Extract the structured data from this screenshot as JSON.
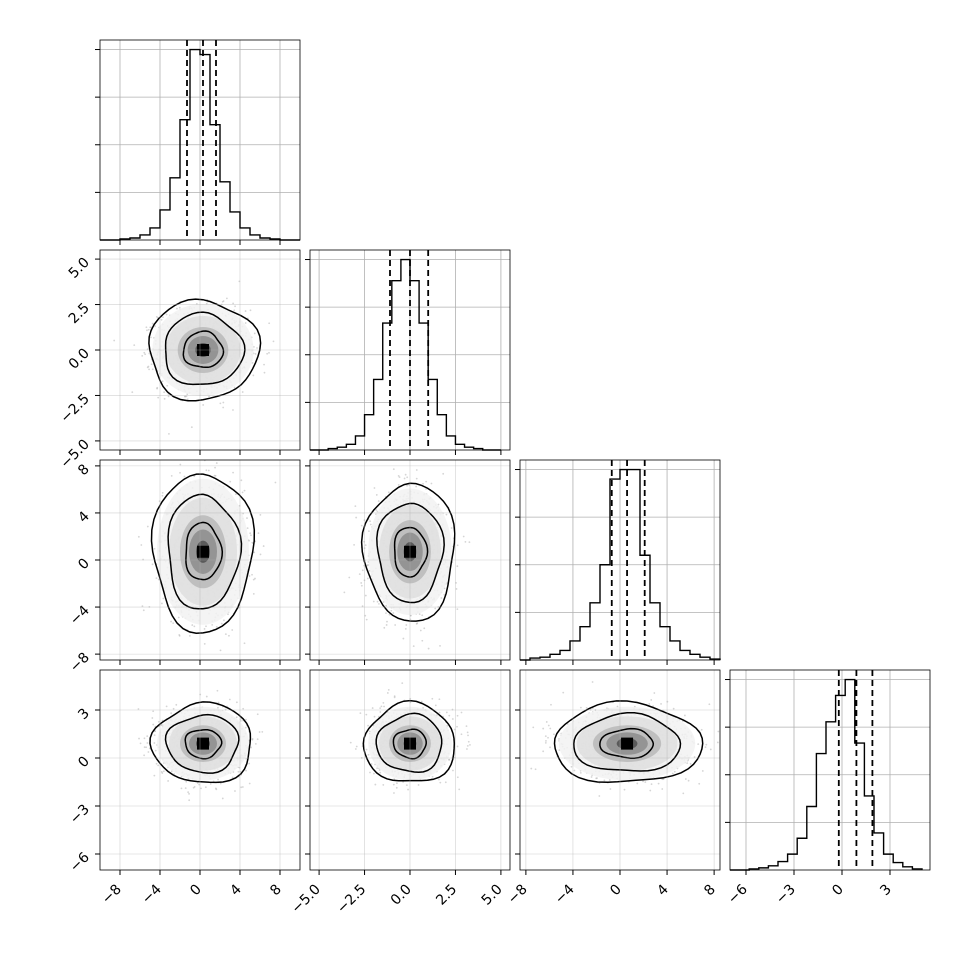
{
  "chart_data": {
    "type": "corner",
    "parameters": 4,
    "grid": true,
    "colors": {
      "line": "#000000",
      "scatter": "#b3b3b3",
      "grid": "#b0b0b0"
    },
    "axes": [
      {
        "range": [
          -10,
          10
        ],
        "ticks": [
          -8,
          -4,
          0,
          4,
          8
        ],
        "tick_labels": [
          "−8",
          "−4",
          "0",
          "4",
          "8"
        ],
        "quantiles": [
          -1.3,
          0.3,
          1.6
        ],
        "ellipse_scale": [
          2.0,
          2.0
        ]
      },
      {
        "range": [
          -5.5,
          5.5
        ],
        "ticks": [
          -5,
          -2.5,
          0,
          2.5,
          5
        ],
        "tick_labels": [
          "−5.0",
          "−2.5",
          "0.0",
          "2.5",
          "5.0"
        ],
        "quantiles": [
          -1.1,
          0.0,
          1.0
        ],
        "ellipse_scale": [
          1.0,
          1.0
        ]
      },
      {
        "range": [
          -8.5,
          8.5
        ],
        "ticks": [
          -8,
          -4,
          0,
          4,
          8
        ],
        "tick_labels": [
          "−8",
          "−4",
          "0",
          "4",
          "8"
        ],
        "quantiles": [
          -0.7,
          0.6,
          2.1
        ],
        "ellipse_scale": [
          1.8,
          1.8
        ]
      },
      {
        "range": [
          -7,
          5.5
        ],
        "ticks": [
          -6,
          -3,
          0,
          3
        ],
        "tick_labels": [
          "−6",
          "−3",
          "0",
          "3"
        ],
        "quantiles": [
          -0.2,
          0.9,
          1.9
        ],
        "ellipse_scale": [
          1.0,
          1.0
        ]
      }
    ],
    "marginals": [
      {
        "bin_edges": [
          -10,
          -9,
          -8,
          -7,
          -6,
          -5,
          -4,
          -3,
          -2,
          -1,
          0,
          1,
          2,
          3,
          4,
          5,
          6,
          7,
          8,
          9,
          10
        ],
        "counts": [
          0,
          0,
          1,
          2,
          5,
          12,
          30,
          62,
          120,
          190,
          185,
          115,
          58,
          28,
          12,
          5,
          2,
          1,
          0,
          0
        ]
      },
      {
        "bin_edges": [
          -5.5,
          -5.0,
          -4.5,
          -4.0,
          -3.5,
          -3.0,
          -2.5,
          -2.0,
          -1.5,
          -1.0,
          -0.5,
          0.0,
          0.5,
          1.0,
          1.5,
          2.0,
          2.5,
          3.0,
          3.5,
          4.0,
          4.5,
          5.0
        ],
        "counts": [
          0,
          0,
          1,
          2,
          4,
          10,
          25,
          50,
          90,
          120,
          135,
          120,
          90,
          50,
          25,
          10,
          4,
          2,
          1,
          0,
          0
        ]
      },
      {
        "bin_edges": [
          -8.5,
          -7.65,
          -6.8,
          -5.95,
          -5.1,
          -4.25,
          -3.4,
          -2.55,
          -1.7,
          -0.85,
          0,
          0.85,
          1.7,
          2.55,
          3.4,
          4.25,
          5.1,
          5.95,
          6.8,
          7.65,
          8.5
        ],
        "counts": [
          0,
          2,
          3,
          6,
          10,
          20,
          35,
          60,
          100,
          190,
          200,
          200,
          110,
          60,
          35,
          20,
          10,
          6,
          3,
          1
        ]
      },
      {
        "bin_edges": [
          -7,
          -6.4,
          -5.8,
          -5.2,
          -4.6,
          -4.0,
          -3.4,
          -2.8,
          -2.2,
          -1.6,
          -1.0,
          -0.4,
          0.2,
          0.8,
          1.4,
          2.0,
          2.6,
          3.2,
          3.8,
          4.4,
          5.0
        ],
        "counts": [
          0,
          0,
          1,
          2,
          4,
          8,
          15,
          30,
          60,
          110,
          140,
          165,
          180,
          120,
          70,
          35,
          15,
          7,
          3,
          1
        ]
      }
    ],
    "pairs": [
      {
        "x": 0,
        "y": 1,
        "center": [
          0.3,
          0.0
        ],
        "spread": [
          1.1,
          1.1
        ]
      },
      {
        "x": 0,
        "y": 2,
        "center": [
          0.3,
          0.7
        ],
        "spread": [
          1.0,
          1.5
        ]
      },
      {
        "x": 1,
        "y": 2,
        "center": [
          0.0,
          0.7
        ],
        "spread": [
          1.0,
          1.3
        ]
      },
      {
        "x": 0,
        "y": 3,
        "center": [
          0.3,
          0.9
        ],
        "spread": [
          1.0,
          1.0
        ]
      },
      {
        "x": 1,
        "y": 3,
        "center": [
          0.0,
          0.9
        ],
        "spread": [
          1.0,
          1.0
        ]
      },
      {
        "x": 2,
        "y": 3,
        "center": [
          0.6,
          0.9
        ],
        "spread": [
          1.4,
          1.0
        ]
      }
    ],
    "contour_levels": [
      0.9,
      1.8,
      2.5
    ]
  }
}
